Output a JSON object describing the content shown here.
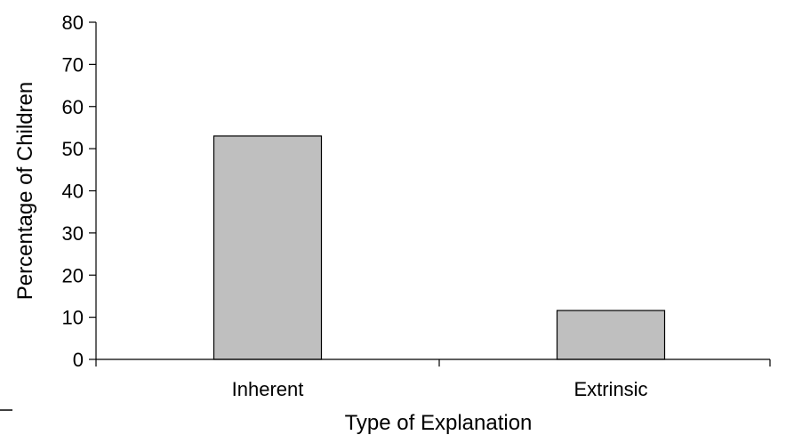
{
  "chart_data": {
    "type": "bar",
    "title": "",
    "xlabel": "Type of Explanation",
    "ylabel": "Percentage of Children",
    "categories": [
      "Inherent",
      "Extrinsic"
    ],
    "values": [
      53,
      11.6
    ],
    "ylim": [
      0,
      80
    ],
    "yticks": [
      "0",
      "10",
      "20",
      "30",
      "40",
      "50",
      "60",
      "70",
      "80"
    ],
    "grid": false,
    "legend": "none",
    "colors": {
      "bar_fill": "#bfbfbf",
      "bar_stroke": "#000000",
      "axis": "#000000",
      "text": "#000000"
    }
  }
}
